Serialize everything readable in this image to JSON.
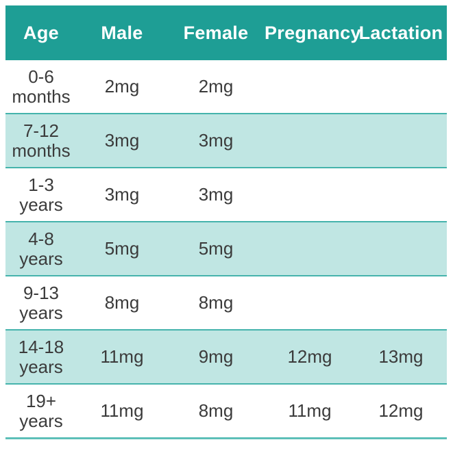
{
  "header": {
    "columns": [
      "Age",
      "Male",
      "Female",
      "Pregnancy",
      "Lactation"
    ]
  },
  "rows": [
    {
      "age": [
        "0-6",
        "months"
      ],
      "male": "2mg",
      "female": "2mg",
      "pregnancy": "",
      "lactation": ""
    },
    {
      "age": [
        "7-12",
        "months"
      ],
      "male": "3mg",
      "female": "3mg",
      "pregnancy": "",
      "lactation": ""
    },
    {
      "age": [
        "1-3",
        "years"
      ],
      "male": "3mg",
      "female": "3mg",
      "pregnancy": "",
      "lactation": ""
    },
    {
      "age": [
        "4-8",
        "years"
      ],
      "male": "5mg",
      "female": "5mg",
      "pregnancy": "",
      "lactation": ""
    },
    {
      "age": [
        "9-13",
        "years"
      ],
      "male": "8mg",
      "female": "8mg",
      "pregnancy": "",
      "lactation": ""
    },
    {
      "age": [
        "14-18",
        "years"
      ],
      "male": "11mg",
      "female": "9mg",
      "pregnancy": "12mg",
      "lactation": "13mg"
    },
    {
      "age": [
        "19+",
        "years"
      ],
      "male": "11mg",
      "female": "8mg",
      "pregnancy": "11mg",
      "lactation": "12mg"
    }
  ],
  "colors": {
    "header_bg": "#1E9E95",
    "header_text": "#FFFFFF",
    "row_alt_bg": "#C0E6E3",
    "row_separator": "#45B3AC",
    "bottom_rule": "#5CBFB8",
    "body_text": "#3B3B3B"
  },
  "chart_data": {
    "type": "table",
    "columns": [
      "Age",
      "Male",
      "Female",
      "Pregnancy",
      "Lactation"
    ],
    "rows": [
      [
        "0-6 months",
        "2mg",
        "2mg",
        "",
        ""
      ],
      [
        "7-12 months",
        "3mg",
        "3mg",
        "",
        ""
      ],
      [
        "1-3 years",
        "3mg",
        "3mg",
        "",
        ""
      ],
      [
        "4-8 years",
        "5mg",
        "5mg",
        "",
        ""
      ],
      [
        "9-13 years",
        "8mg",
        "8mg",
        "",
        ""
      ],
      [
        "14-18 years",
        "11mg",
        "9mg",
        "12mg",
        "13mg"
      ],
      [
        "19+ years",
        "11mg",
        "8mg",
        "11mg",
        "12mg"
      ]
    ],
    "title": "",
    "legend": "none",
    "grid": "horizontal-row-separators"
  }
}
